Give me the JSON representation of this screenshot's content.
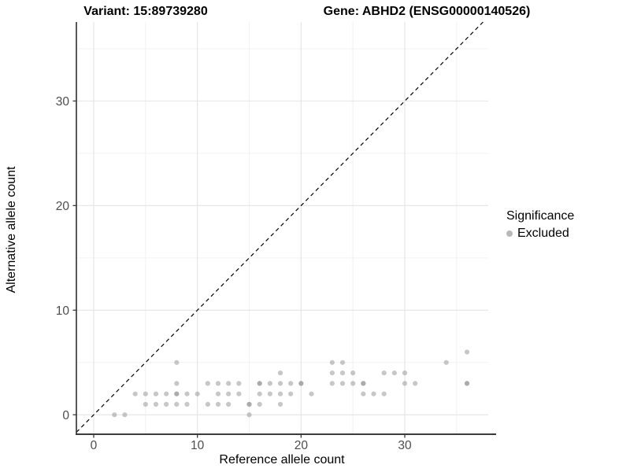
{
  "title": {
    "variant_label": "Variant: 15:89739280",
    "gene_label": "Gene: ABHD2 (ENSG00000140526)"
  },
  "legend": {
    "title": "Significance",
    "items": [
      {
        "label": "Excluded",
        "color": "#b9b9b9"
      }
    ]
  },
  "colors": {
    "background": "#ffffff",
    "grid_major": "#e4e4e4",
    "grid_minor": "#f2f2f2",
    "axis_line": "#3a3a3a",
    "tick_label": "#4d4d4d",
    "identity_line": "#000000",
    "point": "#8f8f8f"
  },
  "chart_data": {
    "type": "scatter",
    "title": "Variant: 15:89739280 — Gene: ABHD2 (ENSG00000140526)",
    "xlabel": "Reference allele count",
    "ylabel": "Alternative allele count",
    "x_ticks": [
      0,
      10,
      20,
      30
    ],
    "y_ticks": [
      0,
      10,
      20,
      30
    ],
    "x_minor": [
      5,
      15,
      25,
      35
    ],
    "y_minor": [
      5,
      15,
      25,
      35
    ],
    "xlim": [
      -1.67,
      38.05
    ],
    "ylim": [
      -1.86,
      37.55
    ],
    "grid": true,
    "legend_position": "right",
    "identity_line": {
      "style": "dashed",
      "slope": 1,
      "intercept": 0
    },
    "series": [
      {
        "name": "Excluded",
        "opacity": 0.5,
        "points": [
          [
            2,
            0
          ],
          [
            3,
            0
          ],
          [
            15,
            0
          ],
          [
            5,
            1
          ],
          [
            6,
            1
          ],
          [
            7,
            1
          ],
          [
            8,
            1
          ],
          [
            9,
            1
          ],
          [
            11,
            1
          ],
          [
            12,
            1
          ],
          [
            13,
            1
          ],
          [
            15,
            1
          ],
          [
            16,
            1
          ],
          [
            18,
            1
          ],
          [
            4,
            2
          ],
          [
            5,
            2
          ],
          [
            6,
            2
          ],
          [
            7,
            2
          ],
          [
            8,
            2
          ],
          [
            9,
            2
          ],
          [
            10,
            2
          ],
          [
            12,
            2
          ],
          [
            13,
            2
          ],
          [
            14,
            2
          ],
          [
            16,
            2
          ],
          [
            17,
            2
          ],
          [
            18,
            2
          ],
          [
            19,
            2
          ],
          [
            21,
            2
          ],
          [
            26,
            2
          ],
          [
            27,
            2
          ],
          [
            28,
            2
          ],
          [
            8,
            3
          ],
          [
            11,
            3
          ],
          [
            12,
            3
          ],
          [
            13,
            3
          ],
          [
            14,
            3
          ],
          [
            16,
            3
          ],
          [
            17,
            3
          ],
          [
            18,
            3
          ],
          [
            19,
            3
          ],
          [
            20,
            3
          ],
          [
            23,
            3
          ],
          [
            24,
            3
          ],
          [
            25,
            3
          ],
          [
            26,
            3
          ],
          [
            30,
            3
          ],
          [
            31,
            3
          ],
          [
            36,
            3
          ],
          [
            18,
            4
          ],
          [
            23,
            4
          ],
          [
            24,
            4
          ],
          [
            25,
            4
          ],
          [
            28,
            4
          ],
          [
            29,
            4
          ],
          [
            30,
            4
          ],
          [
            8,
            5
          ],
          [
            23,
            5
          ],
          [
            24,
            5
          ],
          [
            34,
            5
          ],
          [
            36,
            6
          ]
        ],
        "overplotted": [
          [
            8,
            2
          ],
          [
            15,
            1
          ],
          [
            16,
            3
          ],
          [
            20,
            3
          ],
          [
            26,
            3
          ],
          [
            36,
            3
          ]
        ]
      }
    ]
  }
}
